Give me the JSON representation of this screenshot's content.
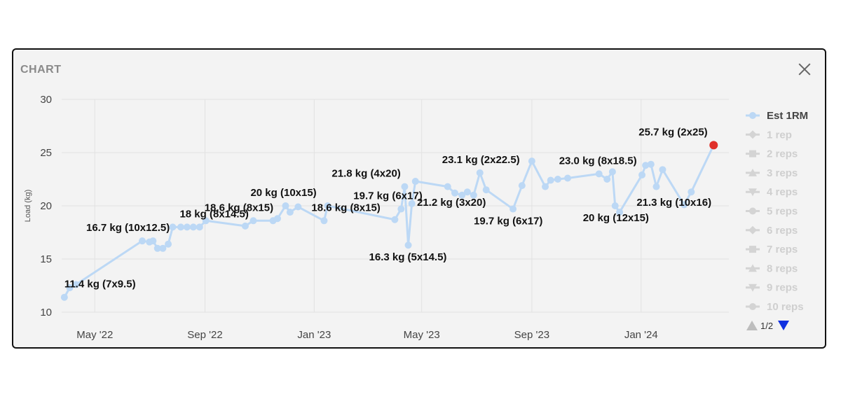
{
  "panel": {
    "title": "CHART",
    "close_icon": "close-icon"
  },
  "chart_data": {
    "type": "line",
    "ylabel": "Load (kg)",
    "xlabel": "",
    "ylim": [
      10,
      30
    ],
    "yticks": [
      10,
      15,
      20,
      25,
      30
    ],
    "xlim": [
      "2022-03-25",
      "2024-04-08"
    ],
    "xticks": [
      {
        "date": "2022-05-01",
        "label": "May '22"
      },
      {
        "date": "2022-09-01",
        "label": "Sep '22"
      },
      {
        "date": "2023-01-01",
        "label": "Jan '23"
      },
      {
        "date": "2023-05-01",
        "label": "May '23"
      },
      {
        "date": "2023-09-01",
        "label": "Sep '23"
      },
      {
        "date": "2024-01-01",
        "label": "Jan '24"
      }
    ],
    "grid": true,
    "legend_position": "right",
    "series": [
      {
        "name": "Est 1RM",
        "color": "#bcd8f5",
        "points": [
          {
            "x": "2022-03-28",
            "y": 11.4,
            "label": "11.4 kg (7x9.5)"
          },
          {
            "x": "2022-04-03",
            "y": 12.3
          },
          {
            "x": "2022-04-10",
            "y": 12.6
          },
          {
            "x": "2022-06-23",
            "y": 16.7,
            "label": "16.7 kg (10x12.5)"
          },
          {
            "x": "2022-07-01",
            "y": 16.6
          },
          {
            "x": "2022-07-05",
            "y": 16.7
          },
          {
            "x": "2022-07-10",
            "y": 16.0
          },
          {
            "x": "2022-07-16",
            "y": 16.0
          },
          {
            "x": "2022-07-22",
            "y": 16.4
          },
          {
            "x": "2022-07-27",
            "y": 18.0,
            "label": "18 kg (8x14.5)"
          },
          {
            "x": "2022-08-05",
            "y": 18.0
          },
          {
            "x": "2022-08-12",
            "y": 18.0
          },
          {
            "x": "2022-08-19",
            "y": 18.0
          },
          {
            "x": "2022-08-26",
            "y": 18.0
          },
          {
            "x": "2022-09-02",
            "y": 18.6,
            "label": "18.6 kg (8x15)"
          },
          {
            "x": "2022-10-16",
            "y": 18.1
          },
          {
            "x": "2022-10-25",
            "y": 18.6
          },
          {
            "x": "2022-11-16",
            "y": 18.6
          },
          {
            "x": "2022-11-21",
            "y": 18.8
          },
          {
            "x": "2022-11-30",
            "y": 20.0,
            "label": "20 kg (10x15)"
          },
          {
            "x": "2022-12-05",
            "y": 19.4
          },
          {
            "x": "2022-12-14",
            "y": 19.9
          },
          {
            "x": "2023-01-12",
            "y": 18.6,
            "label": "18.6 kg (8x15)"
          },
          {
            "x": "2023-01-16",
            "y": 20.0
          },
          {
            "x": "2023-04-01",
            "y": 18.7
          },
          {
            "x": "2023-04-08",
            "y": 19.7,
            "label": "19.7 kg (6x17)"
          },
          {
            "x": "2023-04-12",
            "y": 21.8,
            "label": "21.8 kg (4x20)"
          },
          {
            "x": "2023-04-16",
            "y": 16.3,
            "label": "16.3 kg (5x14.5)"
          },
          {
            "x": "2023-04-20",
            "y": 20.2
          },
          {
            "x": "2023-04-24",
            "y": 22.3
          },
          {
            "x": "2023-05-30",
            "y": 21.8
          },
          {
            "x": "2023-06-07",
            "y": 21.2,
            "label": "21.2 kg (3x20)"
          },
          {
            "x": "2023-06-15",
            "y": 21.0
          },
          {
            "x": "2023-06-21",
            "y": 21.3
          },
          {
            "x": "2023-06-28",
            "y": 21.0
          },
          {
            "x": "2023-07-05",
            "y": 23.1,
            "label": "23.1 kg (2x22.5)"
          },
          {
            "x": "2023-07-12",
            "y": 21.5
          },
          {
            "x": "2023-08-11",
            "y": 19.7,
            "label": "19.7 kg (6x17)"
          },
          {
            "x": "2023-08-21",
            "y": 21.9
          },
          {
            "x": "2023-09-01",
            "y": 24.2
          },
          {
            "x": "2023-09-16",
            "y": 21.8
          },
          {
            "x": "2023-09-22",
            "y": 22.4
          },
          {
            "x": "2023-09-30",
            "y": 22.5
          },
          {
            "x": "2023-10-11",
            "y": 22.6
          },
          {
            "x": "2023-11-15",
            "y": 23.0,
            "label": "23.0 kg (8x18.5)"
          },
          {
            "x": "2023-11-24",
            "y": 22.5
          },
          {
            "x": "2023-11-30",
            "y": 23.2
          },
          {
            "x": "2023-12-03",
            "y": 20.0,
            "label": "20 kg (12x15)"
          },
          {
            "x": "2023-12-08",
            "y": 19.4
          },
          {
            "x": "2024-01-02",
            "y": 22.9
          },
          {
            "x": "2024-01-06",
            "y": 23.8
          },
          {
            "x": "2024-01-12",
            "y": 23.9
          },
          {
            "x": "2024-01-18",
            "y": 21.8
          },
          {
            "x": "2024-01-25",
            "y": 23.4
          },
          {
            "x": "2024-02-18",
            "y": 20.1
          },
          {
            "x": "2024-02-26",
            "y": 21.3,
            "label": "21.3 kg (10x16)"
          },
          {
            "x": "2024-03-22",
            "y": 25.7,
            "label": "25.7 kg (2x25)",
            "highlight": true
          }
        ]
      }
    ],
    "highlight_color": "#e0302a",
    "legend": {
      "items": [
        {
          "label": "Est 1RM",
          "active": true,
          "symbol": "circle"
        },
        {
          "label": "1 rep",
          "active": false,
          "symbol": "diamond"
        },
        {
          "label": "2 reps",
          "active": false,
          "symbol": "square"
        },
        {
          "label": "3 reps",
          "active": false,
          "symbol": "triangle"
        },
        {
          "label": "4 reps",
          "active": false,
          "symbol": "triangle-down"
        },
        {
          "label": "5 reps",
          "active": false,
          "symbol": "circle"
        },
        {
          "label": "6 reps",
          "active": false,
          "symbol": "diamond"
        },
        {
          "label": "7 reps",
          "active": false,
          "symbol": "square"
        },
        {
          "label": "8 reps",
          "active": false,
          "symbol": "triangle"
        },
        {
          "label": "9 reps",
          "active": false,
          "symbol": "triangle-down"
        },
        {
          "label": "10 reps",
          "active": false,
          "symbol": "circle"
        }
      ],
      "pager": {
        "text": "1/2",
        "up_icon": "arrow-up-icon",
        "down_icon": "arrow-down-icon"
      }
    }
  }
}
